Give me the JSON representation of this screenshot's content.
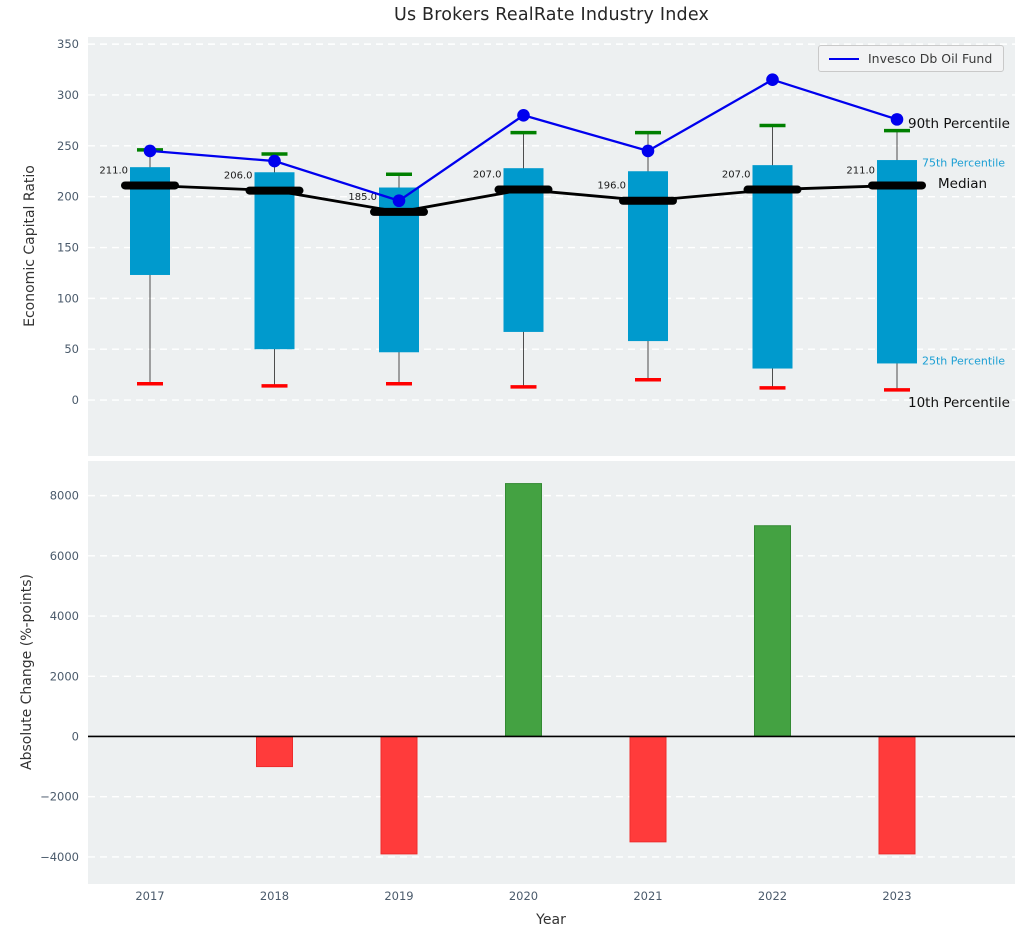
{
  "figure": {
    "title": "Us Brokers RealRate Industry Index",
    "background": "#ffffff",
    "panel_background": "#edf0f1",
    "grid_color": "#ffffff"
  },
  "legend": {
    "label": "Invesco Db Oil Fund",
    "line_color": "#0000ee",
    "position": "upper right"
  },
  "right_labels": {
    "p90": "90th Percentile",
    "p75": "75th Percentile",
    "median": "Median",
    "p25": "25th Percentile",
    "p10": "10th Percentile"
  },
  "chart_data": [
    {
      "type": "boxplot+line",
      "title": "Us Brokers RealRate Industry Index",
      "ylabel": "Economic Capital Ratio",
      "ylim": [
        -55,
        357
      ],
      "yticks": [
        0,
        50,
        100,
        150,
        200,
        250,
        300,
        350
      ],
      "grid": true,
      "legend_position": "upper right",
      "categories": [
        "2017",
        "2018",
        "2019",
        "2020",
        "2021",
        "2022",
        "2023"
      ],
      "series": [
        {
          "name": "10th Percentile",
          "role": "p10",
          "color": "#ff0000",
          "values": [
            16,
            14,
            16,
            13,
            20,
            12,
            10
          ]
        },
        {
          "name": "25th Percentile",
          "role": "p25",
          "color": "#009acd",
          "values": [
            123,
            50,
            47,
            67,
            58,
            31,
            36
          ]
        },
        {
          "name": "Median",
          "role": "median",
          "color": "#000000",
          "values": [
            211,
            206,
            185,
            207,
            196,
            207,
            211
          ]
        },
        {
          "name": "75th Percentile",
          "role": "p75",
          "color": "#009acd",
          "values": [
            229,
            224,
            209,
            228,
            225,
            231,
            236
          ]
        },
        {
          "name": "90th Percentile",
          "role": "p90",
          "color": "#008000",
          "values": [
            246,
            242,
            222,
            263,
            263,
            270,
            265
          ]
        },
        {
          "name": "Invesco Db Oil Fund",
          "role": "fund",
          "color": "#0000ee",
          "values": [
            245,
            235,
            196,
            280,
            245,
            315,
            276
          ]
        }
      ],
      "median_labels": [
        "211.0",
        "206.0",
        "185.0",
        "207.0",
        "196.0",
        "207.0",
        "211.0"
      ],
      "box_color": "#009acd",
      "whisker_color": "#4d4d4d"
    },
    {
      "type": "bar",
      "ylabel": "Absolute Change (%-points)",
      "xlabel": "Year",
      "ylim": [
        -4900,
        9150
      ],
      "yticks": [
        8000,
        6000,
        4000,
        2000,
        0,
        -2000,
        -4000
      ],
      "grid": true,
      "zero_line": true,
      "categories": [
        "2017",
        "2018",
        "2019",
        "2020",
        "2021",
        "2022",
        "2023"
      ],
      "values": [
        0,
        -1000,
        -3900,
        8400,
        -3500,
        7000,
        -3900
      ],
      "positive_color": "#44a242",
      "negative_color": "#ff3b3b"
    }
  ]
}
